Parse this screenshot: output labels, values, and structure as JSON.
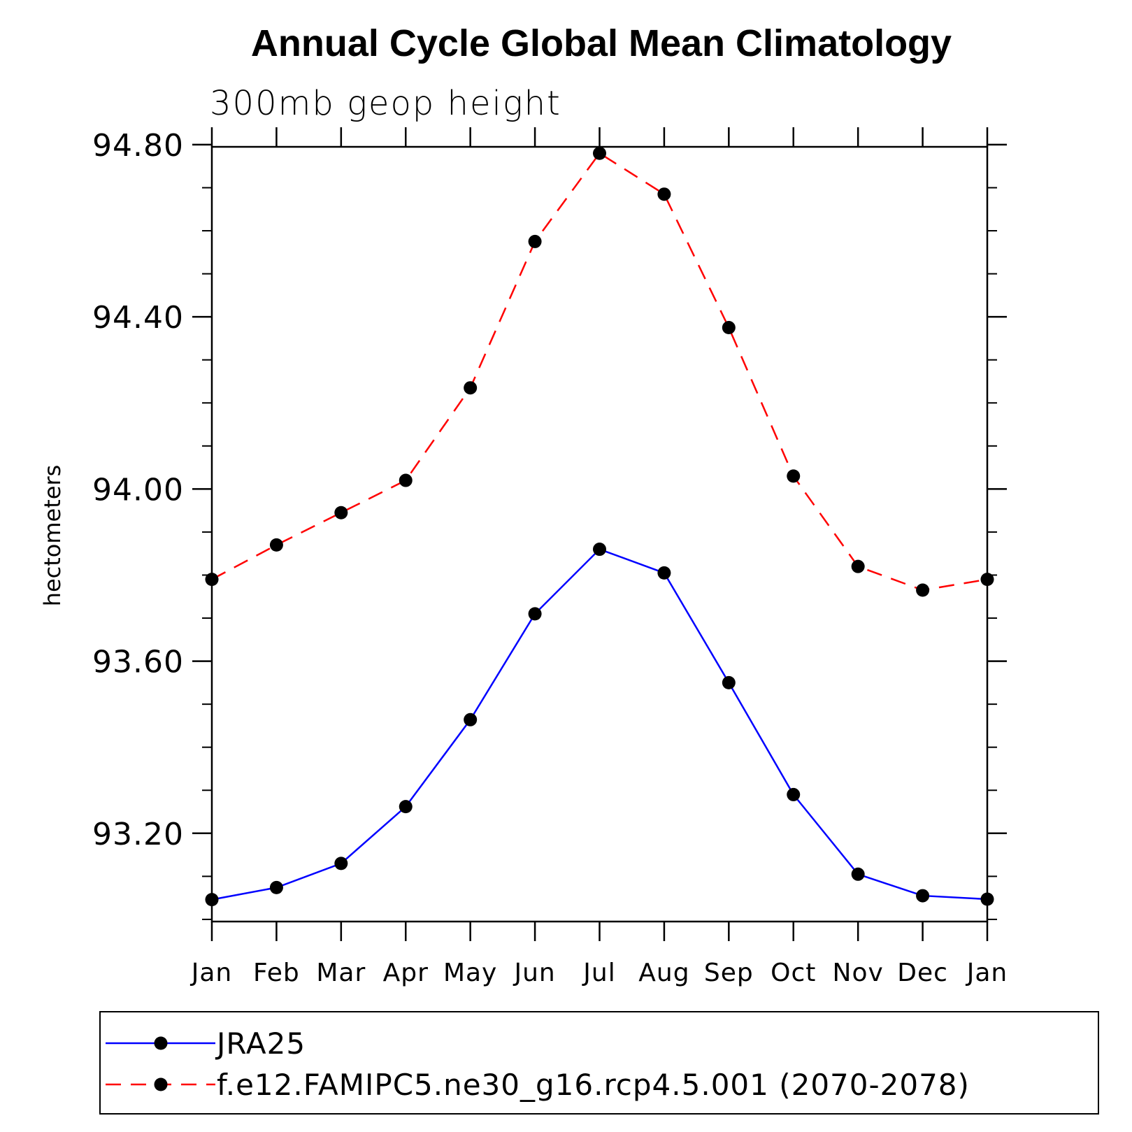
{
  "chart_data": {
    "type": "line",
    "title": "Annual Cycle Global Mean Climatology",
    "subtitle": "300mb geop height",
    "ylabel": "hectometers",
    "xlabel": "",
    "categories": [
      "Jan",
      "Feb",
      "Mar",
      "Apr",
      "May",
      "Jun",
      "Jul",
      "Aug",
      "Sep",
      "Oct",
      "Nov",
      "Dec",
      "Jan"
    ],
    "ylim": [
      92.995,
      94.795
    ],
    "yticks": [
      93.2,
      93.6,
      94.0,
      94.4,
      94.8
    ],
    "ytick_labels": [
      "93.20",
      "93.60",
      "94.00",
      "94.40",
      "94.80"
    ],
    "grid": false,
    "legend_placement": "bottom",
    "series": [
      {
        "name": "JRA25",
        "color": "#0000ff",
        "dash": "solid",
        "marker": "dot",
        "values": [
          93.046,
          93.074,
          93.13,
          93.262,
          93.464,
          93.71,
          93.86,
          93.805,
          93.55,
          93.29,
          93.105,
          93.055,
          93.047
        ]
      },
      {
        "name": "f.e12.FAMIPC5.ne30_g16.rcp4.5.001 (2070-2078)",
        "color": "#ff0000",
        "dash": "dashed",
        "marker": "dot",
        "values": [
          93.79,
          93.87,
          93.945,
          94.02,
          94.235,
          94.575,
          94.78,
          94.685,
          94.375,
          94.03,
          93.82,
          93.765,
          93.79
        ]
      }
    ]
  }
}
